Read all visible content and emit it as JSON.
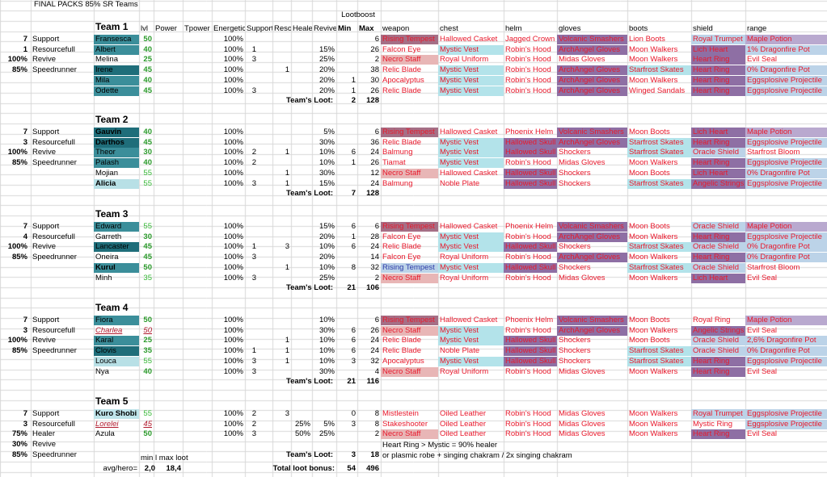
{
  "title": "FINAL PACKS 85% SR Teams",
  "lootboost_label": "Lootboost",
  "headers": [
    "lvl",
    "Power",
    "Tpower",
    "Energetic",
    "Support",
    "Reso",
    "Healer",
    "Revive",
    "Min",
    "Max",
    "weapon",
    "chest",
    "helm",
    "gloves",
    "boots",
    "shield",
    "range"
  ],
  "loot_label": "Team's Loot:",
  "colors": {
    "teal_dark": "#1f6e7a",
    "teal_mid": "#3b8e9a",
    "teal_light": "#b8e0e6",
    "cyan_light": "#bfe4ea",
    "weapon_pink": "#a56f86",
    "weapon_rose": "#e8b6b6",
    "purple": "#8e6fa4",
    "lilac": "#b9a9cf",
    "blue_light": "#bcd3e8",
    "cyan": "#b3e3ea"
  },
  "teams": [
    {
      "name": "Team 1",
      "loot_min": "2",
      "loot_max": "128",
      "side": [
        [
          "7",
          "Support"
        ],
        [
          "1",
          "Resourcefull"
        ],
        [
          "100%",
          "Revive"
        ],
        [
          "85%",
          "Speedrunner"
        ]
      ],
      "heroes": [
        {
          "name": "Fransesca",
          "lvl": "50",
          "energetic": "100%",
          "support": "",
          "reso": "",
          "healer": "",
          "revive": "",
          "min": "",
          "max": "6",
          "gear": [
            "Rising Tempest",
            "Hallowed Casket",
            "Jagged Crown",
            "Volcanic Smashers",
            "Lion Boots",
            "Royal Trumpet",
            "Maple Potion"
          ]
        },
        {
          "name": "Albert",
          "lvl": "40",
          "energetic": "100%",
          "support": "1",
          "reso": "",
          "healer": "",
          "revive": "15%",
          "min": "",
          "max": "26",
          "gear": [
            "Falcon Eye",
            "Mystic Vest",
            "Robin's Hood",
            "ArchAngel Gloves",
            "Moon Walkers",
            "Lich Heart",
            "1% Dragonfire Pot"
          ]
        },
        {
          "name": "Melina",
          "lvl": "25",
          "energetic": "100%",
          "support": "3",
          "reso": "",
          "healer": "",
          "revive": "25%",
          "min": "",
          "max": "2",
          "gear": [
            "Necro Staff",
            "Royal Uniform",
            "Robin's Hood",
            "Midas Gloves",
            "Moon Walkers",
            "Heart Ring",
            "Evil Seal"
          ]
        },
        {
          "name": "Irene",
          "lvl": "45",
          "energetic": "100%",
          "support": "",
          "reso": "1",
          "healer": "",
          "revive": "20%",
          "min": "",
          "max": "38",
          "gear": [
            "Relic Blade",
            "Mystic Vest",
            "Robin's Hood",
            "ArchAngel Gloves",
            "Starfrost Skates",
            "Heart Ring",
            "0% Dragonfire Pot"
          ]
        },
        {
          "name": "Mila",
          "lvl": "40",
          "energetic": "100%",
          "support": "",
          "reso": "",
          "healer": "",
          "revive": "20%",
          "min": "1",
          "max": "30",
          "gear": [
            "Apocalyptus",
            "Mystic Vest",
            "Robin's Hood",
            "ArchAngel Gloves",
            "Moon Walkers",
            "Heart Ring",
            "Eggsplosive Projectile"
          ]
        },
        {
          "name": "Odette",
          "lvl": "45",
          "energetic": "100%",
          "support": "3",
          "reso": "",
          "healer": "",
          "revive": "20%",
          "min": "1",
          "max": "26",
          "gear": [
            "Relic Blade",
            "Mystic Vest",
            "Robin's Hood",
            "ArchAngel Gloves",
            "Winged Sandals",
            "Heart Ring",
            "Eggsplosive Projectile"
          ]
        }
      ]
    },
    {
      "name": "Team 2",
      "loot_min": "7",
      "loot_max": "128",
      "side": [
        [
          "7",
          "Support"
        ],
        [
          "3",
          "Resourcefull"
        ],
        [
          "100%",
          "Revive"
        ],
        [
          "85%",
          "Speedrunner"
        ]
      ],
      "heroes": [
        {
          "name": "Gauvin",
          "lvl": "40",
          "energetic": "100%",
          "support": "",
          "reso": "",
          "healer": "",
          "revive": "5%",
          "min": "",
          "max": "6",
          "gear": [
            "Rising Tempest",
            "Hallowed Casket",
            "Phoenix Helm",
            "Volcanic Smashers",
            "Moon Boots",
            "Lich Heart",
            "Maple Potion"
          ]
        },
        {
          "name": "Darthos",
          "lvl": "45",
          "energetic": "100%",
          "support": "",
          "reso": "",
          "healer": "",
          "revive": "30%",
          "min": "",
          "max": "36",
          "gear": [
            "Relic Blade",
            "Mystic Vest",
            "Hallowed Skull",
            "ArchAngel Gloves",
            "Starfrost Skates",
            "Heart Ring",
            "Eggsplosive Projectile"
          ]
        },
        {
          "name": "Theor",
          "lvl": "30",
          "energetic": "100%",
          "support": "2",
          "reso": "1",
          "healer": "",
          "revive": "10%",
          "min": "6",
          "max": "24",
          "gear": [
            "Balmung",
            "Mystic Vest",
            "Hallowed Skull",
            "Shockers",
            "Starfrost Skates",
            "Oracle Shield",
            "Starfrost Bloom"
          ]
        },
        {
          "name": "Palash",
          "lvl": "40",
          "energetic": "100%",
          "support": "2",
          "reso": "",
          "healer": "",
          "revive": "10%",
          "min": "1",
          "max": "26",
          "gear": [
            "Tiamat",
            "Mystic Vest",
            "Robin's Hood",
            "Midas Gloves",
            "Moon Walkers",
            "Heart Ring",
            "Eggsplosive Projectile"
          ]
        },
        {
          "name": "Mojian",
          "lvl": "55",
          "energetic": "100%",
          "support": "",
          "reso": "1",
          "healer": "",
          "revive": "30%",
          "min": "",
          "max": "12",
          "gear": [
            "Necro Staff",
            "Hallowed Casket",
            "Hallowed Skull",
            "Shockers",
            "Moon Boots",
            "Lich Heart",
            "0% Dragonfire Pot"
          ]
        },
        {
          "name": "Alicia",
          "lvl": "55",
          "energetic": "100%",
          "support": "3",
          "reso": "1",
          "healer": "",
          "revive": "15%",
          "min": "",
          "max": "24",
          "gear": [
            "Balmung",
            "Noble Plate",
            "Hallowed Skull",
            "Shockers",
            "Starfrost Skates",
            "Angelic Strings",
            "Eggsplosive Projectile"
          ]
        }
      ]
    },
    {
      "name": "Team 3",
      "loot_min": "21",
      "loot_max": "106",
      "side": [
        [
          "7",
          "Support"
        ],
        [
          "4",
          "Resourcefull"
        ],
        [
          "100%",
          "Revive"
        ],
        [
          "85%",
          "Speedrunner"
        ]
      ],
      "heroes": [
        {
          "name": "Edward",
          "lvl": "55",
          "energetic": "100%",
          "support": "",
          "reso": "",
          "healer": "",
          "revive": "15%",
          "min": "6",
          "max": "6",
          "gear": [
            "Rising Tempest",
            "Hallowed Casket",
            "Phoenix Helm",
            "Volcanic Smashers",
            "Moon Boots",
            "Oracle Shield",
            "Maple Potion"
          ]
        },
        {
          "name": "Garreth",
          "lvl": "30",
          "energetic": "100%",
          "support": "",
          "reso": "",
          "healer": "",
          "revive": "20%",
          "min": "1",
          "max": "28",
          "gear": [
            "Falcon Eye",
            "Mystic Vest",
            "Robin's Hood",
            "ArchAngel Gloves",
            "Moon Walkers",
            "Heart Ring",
            "Eggsplosive Projectile"
          ]
        },
        {
          "name": "Lancaster",
          "lvl": "45",
          "energetic": "100%",
          "support": "1",
          "reso": "3",
          "healer": "",
          "revive": "10%",
          "min": "6",
          "max": "24",
          "gear": [
            "Relic Blade",
            "Mystic Vest",
            "Hallowed Skull",
            "Shockers",
            "Starfrost Skates",
            "Oracle Shield",
            "0% Dragonfire Pot"
          ]
        },
        {
          "name": "Oneira",
          "lvl": "45",
          "energetic": "100%",
          "support": "3",
          "reso": "",
          "healer": "",
          "revive": "20%",
          "min": "",
          "max": "14",
          "gear": [
            "Falcon Eye",
            "Royal Uniform",
            "Robin's Hood",
            "ArchAngel Gloves",
            "Moon Walkers",
            "Heart Ring",
            "0% Dragonfire Pot"
          ]
        },
        {
          "name": "Kurul",
          "lvl": "50",
          "energetic": "100%",
          "support": "",
          "reso": "1",
          "healer": "",
          "revive": "10%",
          "min": "8",
          "max": "32",
          "gear": [
            "Rising Tempest",
            "Mystic Vest",
            "Hallowed Skull",
            "Shockers",
            "Starfrost Skates",
            "Oracle Shield",
            "Starfrost Bloom"
          ]
        },
        {
          "name": "Minh",
          "lvl": "35",
          "energetic": "100%",
          "support": "3",
          "reso": "",
          "healer": "",
          "revive": "25%",
          "min": "",
          "max": "2",
          "gear": [
            "Necro Staff",
            "Royal Uniform",
            "Robin's Hood",
            "Midas Gloves",
            "Moon Walkers",
            "Lich Heart",
            "Evil Seal"
          ]
        }
      ]
    },
    {
      "name": "Team 4",
      "loot_min": "21",
      "loot_max": "116",
      "side": [
        [
          "7",
          "Support"
        ],
        [
          "3",
          "Resourcefull"
        ],
        [
          "100%",
          "Revive"
        ],
        [
          "85%",
          "Speedrunner"
        ]
      ],
      "heroes": [
        {
          "name": "Fiora",
          "lvl": "50",
          "energetic": "100%",
          "support": "",
          "reso": "",
          "healer": "",
          "revive": "10%",
          "min": "",
          "max": "6",
          "gear": [
            "Rising Tempest",
            "Hallowed Casket",
            "Phoenix Helm",
            "Volcanic Smashers",
            "Moon Boots",
            "Royal Ring",
            "Maple Potion"
          ]
        },
        {
          "name": "Charlea",
          "lvl": "50",
          "energetic": "100%",
          "support": "",
          "reso": "",
          "healer": "",
          "revive": "30%",
          "min": "6",
          "max": "26",
          "gear": [
            "Necro Staff",
            "Mystic Vest",
            "Robin's Hood",
            "ArchAngel Gloves",
            "Moon Walkers",
            "Angelic Strings",
            "Evil Seal"
          ]
        },
        {
          "name": "Karal",
          "lvl": "25",
          "energetic": "100%",
          "support": "",
          "reso": "1",
          "healer": "",
          "revive": "10%",
          "min": "6",
          "max": "24",
          "gear": [
            "Relic Blade",
            "Mystic Vest",
            "Hallowed Skull",
            "Shockers",
            "Moon Boots",
            "Oracle Shield",
            "2,6% Dragonfire Pot"
          ]
        },
        {
          "name": "Clovis",
          "lvl": "35",
          "energetic": "100%",
          "support": "1",
          "reso": "1",
          "healer": "",
          "revive": "10%",
          "min": "6",
          "max": "24",
          "gear": [
            "Relic Blade",
            "Noble Plate",
            "Hallowed Skull",
            "Shockers",
            "Starfrost Skates",
            "Oracle Shield",
            "0% Dragonfire Pot"
          ]
        },
        {
          "name": "Louca",
          "lvl": "55",
          "energetic": "100%",
          "support": "3",
          "reso": "1",
          "healer": "",
          "revive": "10%",
          "min": "3",
          "max": "32",
          "gear": [
            "Apocalyptus",
            "Mystic Vest",
            "Hallowed Skull",
            "Shockers",
            "Starfrost Skates",
            "Heart Ring",
            "Eggsplosive Projectile"
          ]
        },
        {
          "name": "Nya",
          "lvl": "40",
          "energetic": "100%",
          "support": "3",
          "reso": "",
          "healer": "",
          "revive": "30%",
          "min": "",
          "max": "4",
          "gear": [
            "Necro Staff",
            "Royal Uniform",
            "Robin's Hood",
            "Midas Gloves",
            "Moon Walkers",
            "Heart Ring",
            "Evil Seal"
          ]
        }
      ]
    },
    {
      "name": "Team 5",
      "loot_min": "3",
      "loot_max": "18",
      "side": [
        [
          "7",
          "Support"
        ],
        [
          "3",
          "Resourcefull"
        ],
        [
          "75%",
          "Healer"
        ],
        [
          "30%",
          "Revive"
        ],
        [
          "85%",
          "Speedrunner"
        ]
      ],
      "heroes": [
        {
          "name": "Kuro Shobi",
          "lvl": "55",
          "energetic": "100%",
          "support": "2",
          "reso": "3",
          "healer": "",
          "revive": "",
          "min": "0",
          "max": "8",
          "gear": [
            "Mistlestein",
            "Oiled Leather",
            "Robin's Hood",
            "Midas Gloves",
            "Moon Walkers",
            "Royal Trumpet",
            "Eggsplosive Projectile"
          ]
        },
        {
          "name": "Lorelei",
          "lvl": "45",
          "energetic": "100%",
          "support": "2",
          "reso": "",
          "healer": "25%",
          "revive": "5%",
          "min": "3",
          "max": "8",
          "gear": [
            "Stakeshooter",
            "Oiled Leather",
            "Robin's Hood",
            "Midas Gloves",
            "Moon Walkers",
            "Mystic Ring",
            "Eggsplosive Projectile"
          ]
        },
        {
          "name": "Azula",
          "lvl": "50",
          "energetic": "100%",
          "support": "3",
          "reso": "",
          "healer": "50%",
          "revive": "25%",
          "min": "",
          "max": "2",
          "gear": [
            "Necro Staff",
            "Oiled Leather",
            "Robin's Hood",
            "Midas Gloves",
            "Moon Walkers",
            "Heart Ring",
            "Evil Seal"
          ]
        }
      ]
    }
  ],
  "notes": [
    "Heart Ring > Mystic = 90% healer",
    "or plasmic robe + singing chakram / 2x singing chakram"
  ],
  "footer": {
    "minmax_label": "min l max loot",
    "avg_label": "avg/hero=",
    "avg_min": "2,0",
    "avg_max": "18,4",
    "total_label": "Total loot bonus:",
    "total_min": "54",
    "total_max": "496"
  }
}
